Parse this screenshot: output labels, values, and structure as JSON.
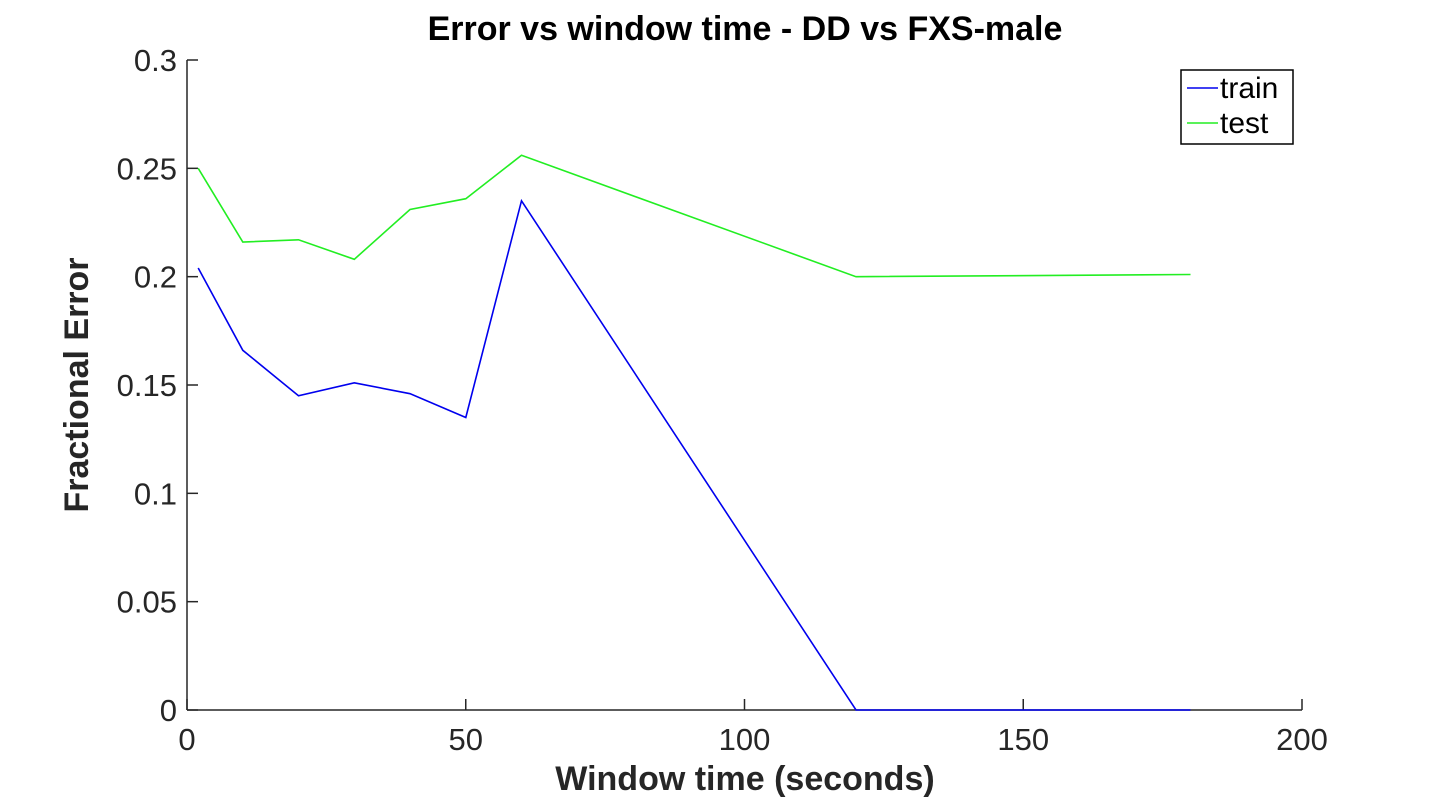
{
  "chart_data": {
    "type": "line",
    "title": "Error vs window time - DD vs FXS-male",
    "xlabel": "Window time (seconds)",
    "ylabel": "Fractional Error",
    "xlim": [
      0,
      200
    ],
    "ylim": [
      0,
      0.3
    ],
    "x_ticks": [
      0,
      50,
      100,
      150,
      200
    ],
    "x_tick_labels": [
      "0",
      "50",
      "100",
      "150",
      "200"
    ],
    "y_ticks": [
      0,
      0.05,
      0.1,
      0.15,
      0.2,
      0.25,
      0.3
    ],
    "y_tick_labels": [
      "0",
      "0.05",
      "0.1",
      "0.15",
      "0.2",
      "0.25",
      "0.3"
    ],
    "grid": false,
    "legend_position": "top-right",
    "series": [
      {
        "name": "train",
        "color": "#0000ee",
        "x": [
          2,
          10,
          20,
          30,
          40,
          50,
          60,
          120,
          180
        ],
        "y": [
          0.204,
          0.166,
          0.145,
          0.151,
          0.146,
          0.135,
          0.235,
          0,
          0
        ]
      },
      {
        "name": "test",
        "color": "#22ee22",
        "x": [
          2,
          10,
          20,
          30,
          40,
          50,
          60,
          120,
          180
        ],
        "y": [
          0.25,
          0.216,
          0.217,
          0.208,
          0.231,
          0.236,
          0.256,
          0.2,
          0.201
        ]
      }
    ]
  }
}
